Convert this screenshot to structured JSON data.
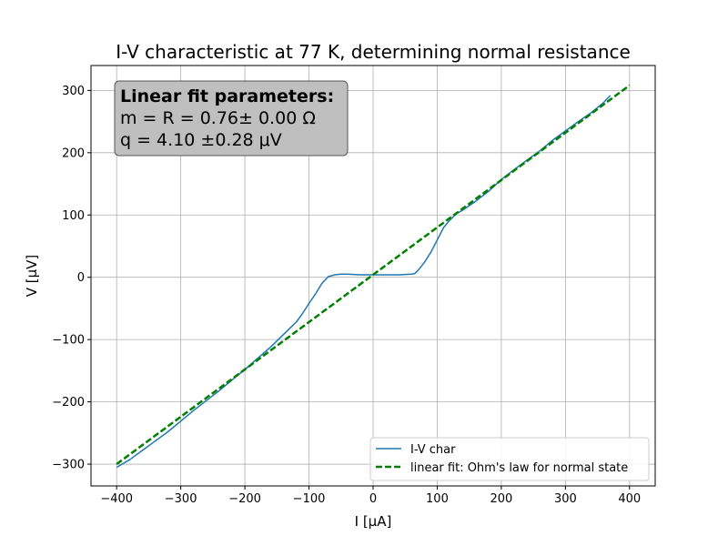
{
  "chart_data": {
    "type": "line",
    "title": "I-V characteristic at 77 K, determining normal resistance",
    "xlabel": "I [μA]",
    "ylabel": "V [μV]",
    "xlim": [
      -440,
      440
    ],
    "ylim": [
      -335,
      340
    ],
    "xticks": [
      -400,
      -300,
      -200,
      -100,
      0,
      100,
      200,
      300,
      400
    ],
    "yticks": [
      -300,
      -200,
      -100,
      0,
      100,
      200,
      300
    ],
    "xtick_labels": [
      "−400",
      "−300",
      "−200",
      "−100",
      "0",
      "100",
      "200",
      "300",
      "400"
    ],
    "ytick_labels": [
      "−300",
      "−200",
      "−100",
      "0",
      "100",
      "200",
      "300"
    ],
    "grid": true,
    "legend_position": "lower-right",
    "annotation": {
      "title": "Linear fit parameters:",
      "line1": "m = R = 0.76± 0.00 Ω",
      "line2": "q = 4.10 ±0.28 μV"
    },
    "series": [
      {
        "name": "I-V char",
        "style": "solid",
        "color": "#1f77b4",
        "x": [
          -400,
          -380,
          -360,
          -340,
          -320,
          -300,
          -280,
          -260,
          -240,
          -220,
          -200,
          -180,
          -160,
          -140,
          -130,
          -120,
          -110,
          -100,
          -90,
          -80,
          -70,
          -60,
          -50,
          -40,
          -20,
          0,
          20,
          40,
          60,
          65,
          70,
          80,
          90,
          100,
          110,
          120,
          130,
          140,
          160,
          180,
          200,
          220,
          240,
          260,
          280,
          300,
          320,
          340,
          360,
          370
        ],
        "y": [
          -305,
          -293,
          -278,
          -263,
          -248,
          -231,
          -214,
          -198,
          -182,
          -165,
          -148,
          -130,
          -112,
          -92,
          -82,
          -72,
          -58,
          -42,
          -27,
          -10,
          1,
          4,
          5,
          5,
          4,
          4,
          4,
          4,
          5,
          6,
          11,
          24,
          40,
          60,
          80,
          92,
          102,
          108,
          122,
          138,
          157,
          173,
          188,
          203,
          220,
          235,
          250,
          264,
          281,
          292
        ]
      },
      {
        "name": "linear fit: Ohm's law for normal state",
        "style": "dashed",
        "color": "#008000",
        "slope": 0.76,
        "intercept": 4.1,
        "x": [
          -400,
          400
        ],
        "y": [
          -299.9,
          308.1
        ]
      }
    ]
  },
  "colors": {
    "grid": "#b0b0b0",
    "annotation_fill": "#bfbfbf",
    "annotation_edge": "#555555",
    "legend_edge": "#cccccc"
  }
}
